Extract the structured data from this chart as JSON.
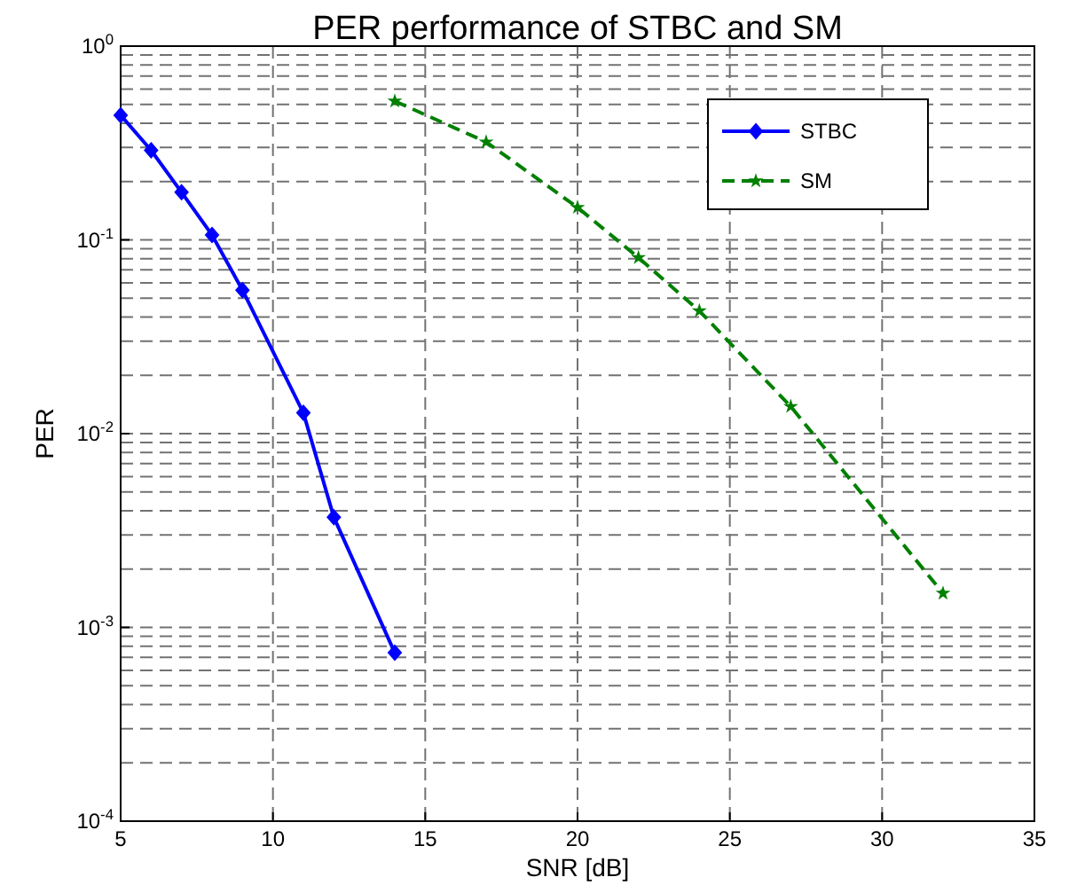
{
  "chart_data": {
    "type": "line",
    "title": "PER performance of STBC and SM",
    "xlabel": "SNR [dB]",
    "ylabel": "PER",
    "log": "y",
    "grid": true,
    "legend": "top right",
    "xlim": [
      5,
      35
    ],
    "xticks": [
      5,
      10,
      15,
      20,
      25,
      30,
      35
    ],
    "ylim": [
      0.0001,
      1
    ],
    "yticks": [
      {
        "value": 0.0001,
        "label": "10$^{-4}$"
      },
      {
        "value": 0.001,
        "label": "10$^{-3}$"
      },
      {
        "value": 0.01,
        "label": "10$^{-2}$"
      },
      {
        "value": 0.1,
        "label": "10$^{-1}$"
      },
      {
        "value": 1,
        "label": "10$^{0}$"
      }
    ],
    "series": [
      {
        "name": "STBC",
        "color": "#0000ff",
        "marker": "diamond",
        "line_style": "solid",
        "x": [
          5,
          6,
          7,
          8,
          9,
          11,
          12,
          14
        ],
        "values": [
          0.44,
          0.29,
          0.176,
          0.106,
          0.055,
          0.0128,
          0.0037,
          0.00074
        ]
      },
      {
        "name": "SM",
        "color": "#008000",
        "marker": "star",
        "line_style": "dashed",
        "x": [
          14,
          17,
          20,
          22,
          24,
          27,
          32
        ],
        "values": [
          0.52,
          0.32,
          0.147,
          0.081,
          0.043,
          0.0138,
          0.0015
        ]
      }
    ]
  }
}
